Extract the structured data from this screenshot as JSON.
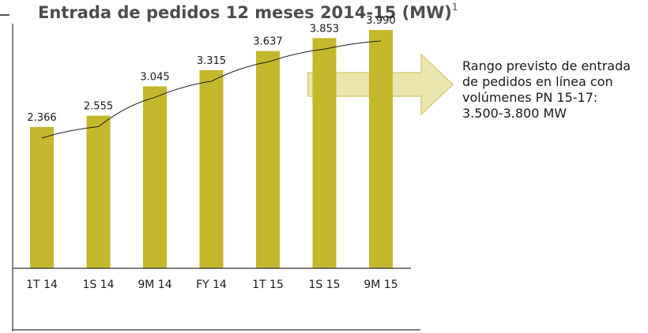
{
  "title": "Entrada de pedidos 12 meses 2014-15 (MW)",
  "title_superscript": "1",
  "side_note": {
    "lines": [
      "Rango previsto de entrada",
      "de pedidos en línea con",
      "volúmenes PN 15-17:",
      "3.500-3.800 MW"
    ]
  },
  "colors": {
    "bar": "#c4b72c",
    "arrow_fill": "#e9e3a6",
    "arrow_stroke": "#d3c86a",
    "axis": "#333333"
  },
  "chart_data": {
    "type": "bar",
    "title": "Entrada de pedidos 12 meses 2014-15 (MW)",
    "categories": [
      "1T 14",
      "1S 14",
      "9M 14",
      "FY 14",
      "1T 15",
      "1S 15",
      "9M 15"
    ],
    "values": [
      2366,
      2555,
      3045,
      3315,
      3637,
      3853,
      3990
    ],
    "value_labels": [
      "2.366",
      "2.555",
      "3.045",
      "3.315",
      "3.637",
      "3.853",
      "3.990"
    ],
    "ylim": [
      0,
      4200
    ],
    "grid": false,
    "trendline": true,
    "annotation_arrow": {
      "from_category": "1S 15",
      "direction": "right"
    }
  }
}
